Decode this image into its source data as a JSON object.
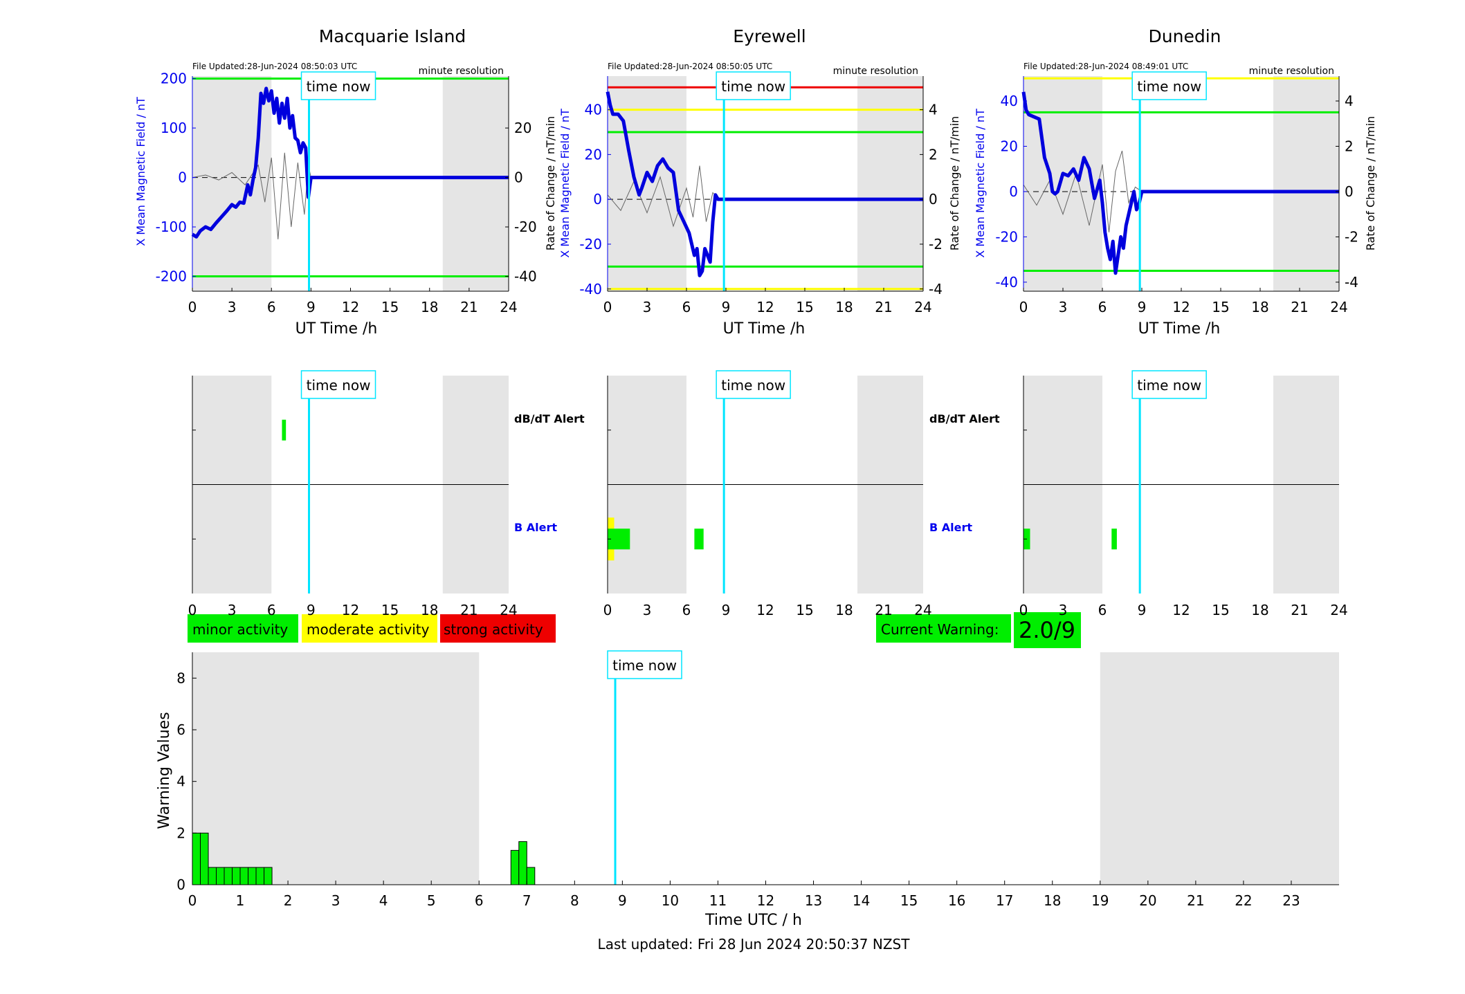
{
  "colors": {
    "shade": "#e5e5e5",
    "timeNow": "#00e5ff",
    "bLine": "#0000dd",
    "dbdt": "#666666",
    "green": "#00ee00",
    "yellow": "#ffff00",
    "red": "#ee0000",
    "axisBlue": "#0000ee"
  },
  "timeNowLabel": "time now",
  "panels": [
    {
      "title": "Macquarie Island",
      "fileUpdated": "File Updated:28-Jun-2024 08:50:03 UTC",
      "resolution": "minute resolution",
      "yLabelLeft": "X Mean Magnetic Field / nT",
      "yLabelRight": "Rate of Change / nT/min",
      "xLabel": "UT Time /h",
      "alertLabels": [
        "dB/dT Alert",
        "B Alert"
      ]
    },
    {
      "title": "Eyrewell",
      "fileUpdated": "File Updated:28-Jun-2024 08:50:05 UTC",
      "resolution": "minute resolution",
      "yLabelLeft": "X Mean Magnetic Field / nT",
      "yLabelRight": "Rate of Change / nT/min",
      "xLabel": "UT Time /h",
      "alertLabels": [
        "dB/dT Alert",
        "B Alert"
      ]
    },
    {
      "title": "Dunedin",
      "fileUpdated": "File Updated:28-Jun-2024 08:49:01 UTC",
      "resolution": "minute resolution",
      "yLabelLeft": "X Mean Magnetic Field / nT",
      "yLabelRight": "Rate of Change / nT/min",
      "xLabel": "UT Time /h",
      "alertLabels": []
    }
  ],
  "legend": {
    "minor": "minor activity",
    "moderate": "moderate activity",
    "strong": "strong activity"
  },
  "currentWarning": {
    "label": "Current Warning:",
    "value": "2.0/9"
  },
  "lastUpdated": "Last updated: Fri 28 Jun 2024 20:50:37 NZST",
  "chart_data": [
    {
      "type": "line",
      "title": "Macquarie Island",
      "xlabel": "UT Time /h",
      "ylabel": "X Mean Magnetic Field / nT",
      "ylabel_right": "Rate of Change / nT/min",
      "xlim": [
        0,
        24
      ],
      "ylim": [
        -230,
        205
      ],
      "ylim_right": [
        -46,
        41
      ],
      "xticks": [
        0,
        3,
        6,
        9,
        12,
        15,
        18,
        21,
        24
      ],
      "yticks": [
        -200,
        -100,
        0,
        100,
        200
      ],
      "yticks_right": [
        -40,
        -20,
        0,
        20
      ],
      "shaded_ranges": [
        [
          0,
          6
        ],
        [
          19,
          24
        ]
      ],
      "time_now": 8.85,
      "thresholds": [
        {
          "value": 200,
          "color": "green"
        },
        {
          "value": -200,
          "color": "green"
        }
      ],
      "series": [
        {
          "name": "X Mean Magnetic Field",
          "x": [
            0,
            0.3,
            0.6,
            1.0,
            1.4,
            1.8,
            2.2,
            2.6,
            3.0,
            3.3,
            3.6,
            3.9,
            4.2,
            4.4,
            4.6,
            4.8,
            5.0,
            5.2,
            5.4,
            5.6,
            5.8,
            6.0,
            6.2,
            6.4,
            6.6,
            6.8,
            7.0,
            7.2,
            7.4,
            7.6,
            7.8,
            8.0,
            8.2,
            8.4,
            8.6,
            8.8,
            9.0,
            24
          ],
          "values": [
            -115,
            -120,
            -108,
            -100,
            -105,
            -92,
            -80,
            -68,
            -55,
            -60,
            -50,
            -52,
            -15,
            -35,
            -5,
            20,
            80,
            170,
            150,
            180,
            155,
            175,
            130,
            160,
            110,
            150,
            120,
            160,
            100,
            125,
            80,
            75,
            50,
            70,
            60,
            -40,
            0,
            0
          ]
        },
        {
          "name": "Rate of Change",
          "x": [
            0,
            1,
            2,
            3,
            4,
            5,
            5.5,
            6,
            6.5,
            7,
            7.5,
            8,
            8.5,
            8.8,
            9,
            24
          ],
          "values": [
            0,
            1,
            -1,
            2,
            -3,
            5,
            -10,
            8,
            -25,
            10,
            -20,
            6,
            -15,
            5,
            0,
            0
          ]
        }
      ],
      "alerts": {
        "dbdt": [
          {
            "start": 6.8,
            "end": 7.1,
            "level": "minor"
          }
        ],
        "b": []
      }
    },
    {
      "type": "line",
      "title": "Eyrewell",
      "xlabel": "UT Time /h",
      "ylabel": "X Mean Magnetic Field / nT",
      "ylabel_right": "Rate of Change / nT/min",
      "xlim": [
        0,
        24
      ],
      "ylim": [
        -41,
        55
      ],
      "ylim_right": [
        -4.1,
        5.5
      ],
      "xticks": [
        0,
        3,
        6,
        9,
        12,
        15,
        18,
        21,
        24
      ],
      "yticks": [
        -40,
        -20,
        0,
        20,
        40
      ],
      "yticks_right": [
        -4,
        -2,
        0,
        2,
        4
      ],
      "shaded_ranges": [
        [
          0,
          6
        ],
        [
          19,
          24
        ]
      ],
      "time_now": 8.85,
      "thresholds": [
        {
          "value": 50,
          "color": "red"
        },
        {
          "value": 40,
          "color": "yellow"
        },
        {
          "value": 30,
          "color": "green"
        },
        {
          "value": -30,
          "color": "green"
        },
        {
          "value": -40,
          "color": "yellow"
        }
      ],
      "series": [
        {
          "name": "X Mean Magnetic Field",
          "x": [
            0,
            0.2,
            0.4,
            0.8,
            1.2,
            1.6,
            2.0,
            2.4,
            2.6,
            3.0,
            3.4,
            3.8,
            4.2,
            4.6,
            5.0,
            5.4,
            5.8,
            6.2,
            6.6,
            6.8,
            7.0,
            7.2,
            7.4,
            7.6,
            7.8,
            8.0,
            8.2,
            8.4,
            8.6,
            9.0,
            24
          ],
          "values": [
            48,
            42,
            38,
            38,
            35,
            22,
            10,
            2,
            5,
            12,
            8,
            15,
            18,
            14,
            12,
            -5,
            -10,
            -15,
            -25,
            -22,
            -34,
            -32,
            -22,
            -25,
            -28,
            -10,
            2,
            0,
            0,
            0,
            0
          ]
        },
        {
          "name": "Rate of Change",
          "x": [
            0,
            1,
            2,
            3,
            4,
            5,
            6,
            6.5,
            7,
            7.5,
            8,
            8.5,
            9,
            24
          ],
          "values": [
            0.2,
            -0.5,
            0.8,
            -0.6,
            1.0,
            -1.2,
            0.5,
            -0.8,
            1.5,
            -1.0,
            0.3,
            0,
            0,
            0
          ]
        }
      ],
      "alerts": {
        "dbdt": [],
        "b": [
          {
            "start": 0,
            "end": 1.7,
            "level": "minor"
          },
          {
            "start": 0,
            "end": 0.5,
            "level": "moderate"
          },
          {
            "start": 6.6,
            "end": 7.3,
            "level": "minor"
          }
        ]
      }
    },
    {
      "type": "line",
      "title": "Dunedin",
      "xlabel": "UT Time /h",
      "ylabel": "X Mean Magnetic Field / nT",
      "ylabel_right": "Rate of Change / nT/min",
      "xlim": [
        0,
        24
      ],
      "ylim": [
        -44,
        51
      ],
      "ylim_right": [
        -4.4,
        5.1
      ],
      "xticks": [
        0,
        3,
        6,
        9,
        12,
        15,
        18,
        21,
        24
      ],
      "yticks": [
        -40,
        -20,
        0,
        20,
        40
      ],
      "yticks_right": [
        -4,
        -2,
        0,
        2,
        4
      ],
      "shaded_ranges": [
        [
          0,
          6
        ],
        [
          19,
          24
        ]
      ],
      "time_now": 8.85,
      "thresholds": [
        {
          "value": 50,
          "color": "yellow"
        },
        {
          "value": 35,
          "color": "green"
        },
        {
          "value": -35,
          "color": "green"
        }
      ],
      "series": [
        {
          "name": "X Mean Magnetic Field",
          "x": [
            0,
            0.2,
            0.4,
            0.8,
            1.2,
            1.6,
            2.0,
            2.2,
            2.4,
            2.6,
            3.0,
            3.4,
            3.8,
            4.2,
            4.6,
            5.0,
            5.4,
            5.8,
            6.0,
            6.2,
            6.4,
            6.6,
            6.8,
            7.0,
            7.2,
            7.4,
            7.6,
            7.8,
            8.0,
            8.2,
            8.4,
            8.6,
            8.8,
            9.0,
            24
          ],
          "values": [
            44,
            36,
            34,
            33,
            32,
            15,
            8,
            0,
            -1,
            0,
            8,
            7,
            10,
            5,
            15,
            10,
            -3,
            5,
            -5,
            -18,
            -25,
            -30,
            -22,
            -36,
            -28,
            -20,
            -25,
            -15,
            -10,
            -5,
            0,
            -8,
            -5,
            0,
            0
          ]
        },
        {
          "name": "Rate of Change",
          "x": [
            0,
            1,
            2,
            3,
            4,
            5,
            6,
            6.5,
            7,
            7.5,
            8,
            8.5,
            9,
            24
          ],
          "values": [
            0.3,
            -0.6,
            0.5,
            -1.0,
            0.8,
            -1.5,
            1.2,
            -1.8,
            0.9,
            1.8,
            -0.5,
            0.2,
            0,
            0
          ]
        }
      ],
      "alerts": {
        "dbdt": [],
        "b": [
          {
            "start": 0,
            "end": 0.5,
            "level": "minor"
          },
          {
            "start": 6.7,
            "end": 7.1,
            "level": "minor"
          }
        ]
      }
    },
    {
      "type": "bar",
      "xlabel": "Time UTC / h",
      "ylabel": "Warning Values",
      "xlim": [
        0,
        24
      ],
      "ylim": [
        0,
        9
      ],
      "xticks": [
        0,
        1,
        2,
        3,
        4,
        5,
        6,
        7,
        8,
        9,
        10,
        11,
        12,
        13,
        14,
        15,
        16,
        17,
        18,
        19,
        20,
        21,
        22,
        23
      ],
      "yticks": [
        0,
        2,
        4,
        6,
        8
      ],
      "shaded_ranges": [
        [
          0,
          6
        ],
        [
          19,
          24
        ]
      ],
      "time_now": 8.85,
      "bar_width": 0.1667,
      "x": [
        0,
        0.1667,
        0.3333,
        0.5,
        0.6667,
        0.8333,
        1.0,
        1.1667,
        1.3333,
        1.5,
        6.6667,
        6.8333,
        7.0
      ],
      "values": [
        2,
        2,
        0.67,
        0.67,
        0.67,
        0.67,
        0.67,
        0.67,
        0.67,
        0.67,
        1.33,
        1.67,
        0.67
      ]
    }
  ]
}
